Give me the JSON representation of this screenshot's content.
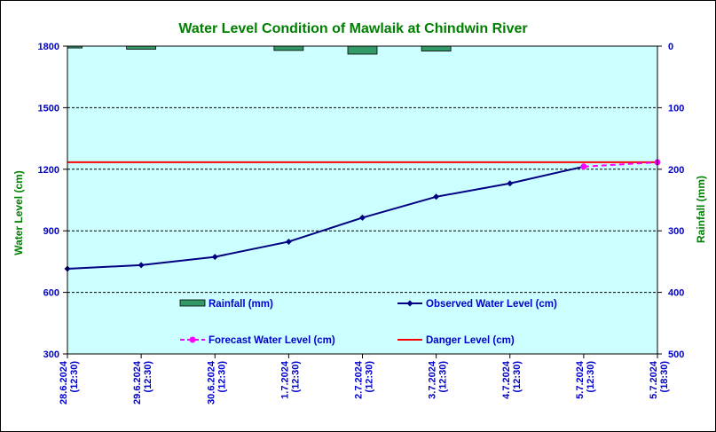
{
  "chart_data": {
    "type": "line",
    "title": "Water Level Condition of Mawlaik at Chindwin River",
    "ylabel": "Water Level (cm)",
    "y2label": "Rainfall (mm)",
    "ylim": [
      300,
      1800
    ],
    "yticks": [
      300,
      600,
      900,
      1200,
      1500,
      1800
    ],
    "y2lim": [
      0,
      500
    ],
    "y2ticks": [
      0,
      100,
      200,
      300,
      400,
      500
    ],
    "y2_inverted": true,
    "grid": true,
    "categories": [
      [
        "28.6.2024",
        "(12:30)"
      ],
      [
        "29.6.2024",
        "(12:30)"
      ],
      [
        "30.6.2024",
        "(12:30)"
      ],
      [
        "1.7.2024",
        "(12:30)"
      ],
      [
        "2.7.2024",
        "(12:30)"
      ],
      [
        "3.7.2024",
        "(12:30)"
      ],
      [
        "4.7.2024",
        "(12:30)"
      ],
      [
        "5.7.2024",
        "(12:30)"
      ],
      [
        "5.7.2024",
        "(18:30)"
      ]
    ],
    "series": [
      {
        "name": "Rainfall (mm)",
        "kind": "bar",
        "axis": "right",
        "color": "#339966",
        "values": [
          3,
          5,
          null,
          7,
          13,
          8,
          null,
          null,
          null
        ]
      },
      {
        "name": "Observed Water Level (cm)",
        "kind": "line",
        "axis": "left",
        "color": "#000080",
        "values": [
          715,
          733,
          773,
          847,
          964,
          1066,
          1131,
          1213,
          null
        ]
      },
      {
        "name": "Forecast Water Level (cm)",
        "kind": "line",
        "axis": "left",
        "color": "#ff00ff",
        "dashed": true,
        "values": [
          null,
          null,
          null,
          null,
          null,
          null,
          null,
          1213,
          1234
        ]
      },
      {
        "name": "Danger Level (cm)",
        "kind": "constant",
        "axis": "left",
        "color": "#ff0000",
        "value": 1234
      }
    ],
    "legend_placement": "inside-bottom"
  },
  "colors": {
    "plot_background": "#ccffff",
    "title": "#008000",
    "axis_labels": "#008000",
    "tick_labels": "#0000cc",
    "legend_text": "#0000cc"
  }
}
